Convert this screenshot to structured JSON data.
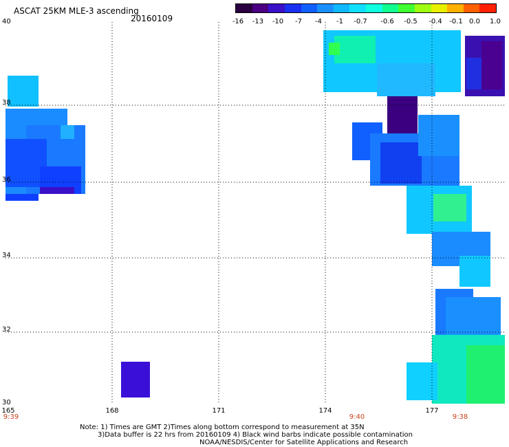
{
  "header": {
    "title": "ASCAT 25KM MLE-3 ascending",
    "date": "20160109"
  },
  "colorbar": {
    "colors": [
      "#2a0040",
      "#4a0080",
      "#3a10c8",
      "#1a30f0",
      "#1060ff",
      "#1a90ff",
      "#10b8ff",
      "#10e0ff",
      "#10ffe0",
      "#10ff90",
      "#40ff30",
      "#a0ff10",
      "#e8f000",
      "#ffb000",
      "#ff6000",
      "#ff2000"
    ],
    "labels": [
      "-16",
      "-13",
      "-10",
      "-7",
      "-4",
      "-1",
      "-0.7",
      "-0.6",
      "-0.5",
      "-0.4",
      "-0.1",
      "0.0",
      "1.0"
    ]
  },
  "axes": {
    "lat_labels": [
      "40",
      "38",
      "36",
      "34",
      "32",
      "30"
    ],
    "lon_labels": [
      "165",
      "168",
      "171",
      "174",
      "177"
    ],
    "time_labels": [
      "9:39",
      "9:40",
      "9:38"
    ]
  },
  "notes": {
    "line1": "Note: 1) Times are GMT 2)Times along bottom correspond to measurement at 35N",
    "line2": "3)Data buffer is 22 hrs from 20160109 4) Black wind barbs indicate possible contamination",
    "line3": "NOAA/NESDIS/Center for Satellite Applications and Research"
  },
  "map_data": {
    "extent": {
      "lon": [
        165,
        179
      ],
      "lat": [
        30,
        40
      ]
    },
    "grid": {
      "lon": [
        168,
        171,
        174,
        177
      ],
      "lat": [
        32,
        34,
        36,
        38
      ]
    }
  }
}
